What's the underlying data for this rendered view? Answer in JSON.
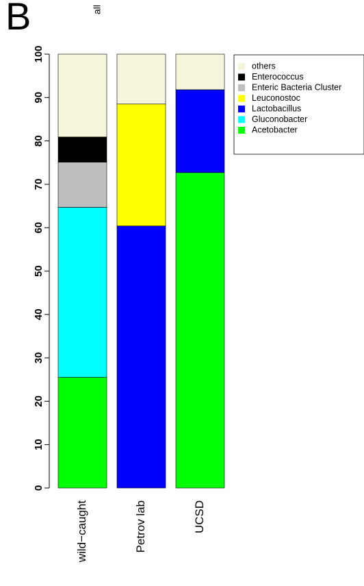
{
  "panel_letter": "B",
  "chart_data": {
    "type": "bar",
    "stacked": true,
    "title": "all",
    "xlabel": "",
    "ylabel": "",
    "ylim": [
      0,
      100
    ],
    "yticks": [
      0,
      10,
      20,
      30,
      40,
      50,
      60,
      70,
      80,
      90,
      100
    ],
    "categories": [
      "wild−caught",
      "Petrov lab",
      "UCSD"
    ],
    "series": [
      {
        "name": "Acetobacter",
        "color": "#00ff00",
        "values": [
          25.5,
          0,
          72.7
        ]
      },
      {
        "name": "Gluconobacter",
        "color": "#00ffff",
        "values": [
          39.2,
          0,
          0
        ]
      },
      {
        "name": "Lactobacillus",
        "color": "#0000ff",
        "values": [
          0,
          60.4,
          19.1
        ]
      },
      {
        "name": "Leuconostoc",
        "color": "#ffff00",
        "values": [
          0,
          28.1,
          0
        ]
      },
      {
        "name": "Enteric Bacteria Cluster",
        "color": "#bebebe",
        "values": [
          10.4,
          0,
          0
        ]
      },
      {
        "name": "Enterococcus",
        "color": "#000000",
        "values": [
          5.8,
          0,
          0
        ]
      },
      {
        "name": "others",
        "color": "#f5f5dc",
        "values": [
          19.1,
          11.5,
          8.2
        ]
      }
    ],
    "legend_position": "top-right",
    "legend_order": [
      "others",
      "Enterococcus",
      "Enteric Bacteria Cluster",
      "Leuconostoc",
      "Lactobacillus",
      "Gluconobacter",
      "Acetobacter"
    ],
    "grid": false
  }
}
